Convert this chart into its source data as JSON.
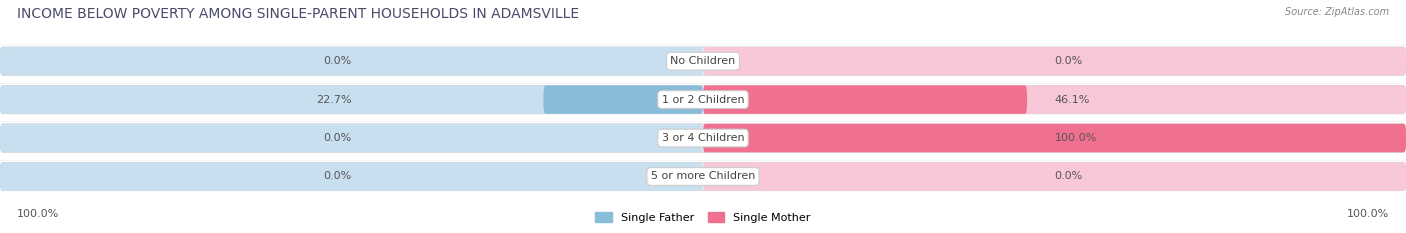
{
  "title": "INCOME BELOW POVERTY AMONG SINGLE-PARENT HOUSEHOLDS IN ADAMSVILLE",
  "source": "Source: ZipAtlas.com",
  "categories": [
    "No Children",
    "1 or 2 Children",
    "3 or 4 Children",
    "5 or more Children"
  ],
  "single_father": [
    0.0,
    22.7,
    0.0,
    0.0
  ],
  "single_mother": [
    0.0,
    46.1,
    100.0,
    0.0
  ],
  "father_color": "#89bcd8",
  "mother_color": "#f07090",
  "father_light": "#c8dff0",
  "mother_light": "#f8c8d8",
  "row_bg_color": "#f0f0f0",
  "fig_bg_color": "#ffffff",
  "axis_label_left": "100.0%",
  "axis_label_right": "100.0%",
  "max_val": 100.0,
  "title_fontsize": 10,
  "label_fontsize": 8,
  "tick_fontsize": 8,
  "source_fontsize": 7,
  "title_color": "#4a4a6a",
  "source_color": "#888888",
  "value_color": "#555555",
  "cat_label_color": "#444444"
}
